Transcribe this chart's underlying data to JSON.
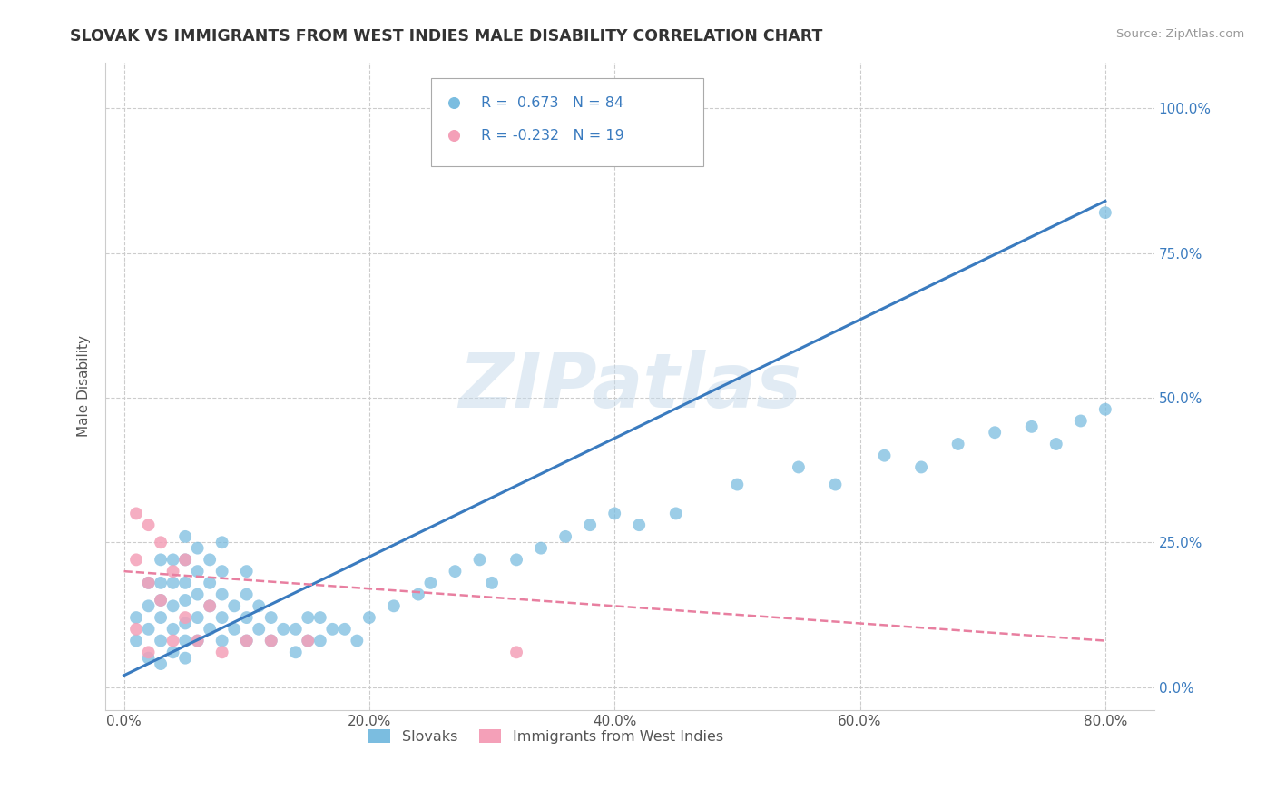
{
  "title": "SLOVAK VS IMMIGRANTS FROM WEST INDIES MALE DISABILITY CORRELATION CHART",
  "source": "Source: ZipAtlas.com",
  "xlabel_vals": [
    0.0,
    20.0,
    40.0,
    60.0,
    80.0
  ],
  "ylabel_vals": [
    0.0,
    25.0,
    50.0,
    75.0,
    100.0
  ],
  "xlim": [
    -1.5,
    84
  ],
  "ylim": [
    -4,
    108
  ],
  "legend_blue_R": "0.673",
  "legend_blue_N": "84",
  "legend_pink_R": "-0.232",
  "legend_pink_N": "19",
  "blue_color": "#7bbde0",
  "pink_color": "#f4a0b8",
  "blue_line_color": "#3a7bbf",
  "pink_line_color": "#e87fa0",
  "watermark": "ZIPatlas",
  "ylabel": "Male Disability",
  "legend_label_blue": "Slovaks",
  "legend_label_pink": "Immigrants from West Indies",
  "blue_scatter_x": [
    1,
    1,
    2,
    2,
    2,
    2,
    3,
    3,
    3,
    3,
    3,
    3,
    4,
    4,
    4,
    4,
    4,
    5,
    5,
    5,
    5,
    5,
    5,
    5,
    6,
    6,
    6,
    6,
    6,
    7,
    7,
    7,
    7,
    8,
    8,
    8,
    8,
    8,
    9,
    9,
    10,
    10,
    10,
    10,
    11,
    11,
    12,
    12,
    13,
    14,
    14,
    15,
    15,
    16,
    16,
    17,
    18,
    19,
    20,
    22,
    24,
    25,
    27,
    29,
    30,
    32,
    34,
    36,
    38,
    40,
    42,
    45,
    50,
    55,
    58,
    62,
    65,
    68,
    71,
    74,
    76,
    78,
    80,
    80
  ],
  "blue_scatter_y": [
    8,
    12,
    5,
    10,
    14,
    18,
    4,
    8,
    12,
    15,
    18,
    22,
    6,
    10,
    14,
    18,
    22,
    5,
    8,
    11,
    15,
    18,
    22,
    26,
    8,
    12,
    16,
    20,
    24,
    10,
    14,
    18,
    22,
    8,
    12,
    16,
    20,
    25,
    10,
    14,
    8,
    12,
    16,
    20,
    10,
    14,
    8,
    12,
    10,
    6,
    10,
    8,
    12,
    8,
    12,
    10,
    10,
    8,
    12,
    14,
    16,
    18,
    20,
    22,
    18,
    22,
    24,
    26,
    28,
    30,
    28,
    30,
    35,
    38,
    35,
    40,
    38,
    42,
    44,
    45,
    42,
    46,
    48,
    82
  ],
  "pink_scatter_x": [
    1,
    1,
    1,
    2,
    2,
    2,
    3,
    3,
    4,
    4,
    5,
    5,
    6,
    7,
    8,
    10,
    12,
    15,
    32
  ],
  "pink_scatter_y": [
    30,
    22,
    10,
    28,
    18,
    6,
    25,
    15,
    20,
    8,
    22,
    12,
    8,
    14,
    6,
    8,
    8,
    8,
    6
  ],
  "blue_trendline_x": [
    0,
    80
  ],
  "blue_trendline_y": [
    2,
    84
  ],
  "pink_trendline_x": [
    0,
    80
  ],
  "pink_trendline_y": [
    20,
    8
  ]
}
